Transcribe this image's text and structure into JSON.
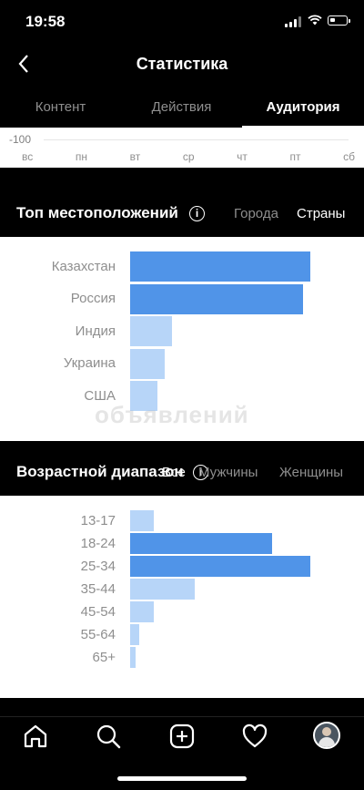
{
  "status_bar": {
    "time": "19:58"
  },
  "header": {
    "title": "Статистика"
  },
  "tabs": [
    {
      "label": "Контент",
      "active": false
    },
    {
      "label": "Действия",
      "active": false
    },
    {
      "label": "Аудитория",
      "active": true
    }
  ],
  "activity_chart": {
    "y_tick": "-100",
    "days": [
      "вс",
      "пн",
      "вт",
      "ср",
      "чт",
      "пт",
      "сб"
    ]
  },
  "locations": {
    "title": "Топ местоположений",
    "filters": [
      {
        "label": "Города",
        "active": false
      },
      {
        "label": "Страны",
        "active": true
      }
    ],
    "rows": [
      {
        "label": "Казахстан",
        "value": 100,
        "highlight": true
      },
      {
        "label": "Россия",
        "value": 96,
        "highlight": true
      },
      {
        "label": "Индия",
        "value": 23,
        "highlight": false
      },
      {
        "label": "Украина",
        "value": 19,
        "highlight": false
      },
      {
        "label": "США",
        "value": 15,
        "highlight": false
      }
    ]
  },
  "ages": {
    "title": "Возрастной диапазон",
    "filters": [
      {
        "label": "Все",
        "active": true
      },
      {
        "label": "Мужчины",
        "active": false
      },
      {
        "label": "Женщины",
        "active": false
      }
    ],
    "rows": [
      {
        "label": "13-17",
        "value": 13,
        "highlight": false
      },
      {
        "label": "18-24",
        "value": 79,
        "highlight": true
      },
      {
        "label": "25-34",
        "value": 100,
        "highlight": true
      },
      {
        "label": "35-44",
        "value": 36,
        "highlight": false
      },
      {
        "label": "45-54",
        "value": 13,
        "highlight": false
      },
      {
        "label": "55-64",
        "value": 5,
        "highlight": false
      },
      {
        "label": "65+",
        "value": 3,
        "highlight": false
      }
    ]
  },
  "watermark": "объявлений",
  "tabbar": [
    {
      "icon": "home-icon"
    },
    {
      "icon": "search-icon"
    },
    {
      "icon": "add-post-icon"
    },
    {
      "icon": "heart-icon"
    },
    {
      "icon": "profile-avatar"
    }
  ],
  "colors": {
    "bar_dark": "#5094e8",
    "bar_light": "#b7d5f8"
  }
}
